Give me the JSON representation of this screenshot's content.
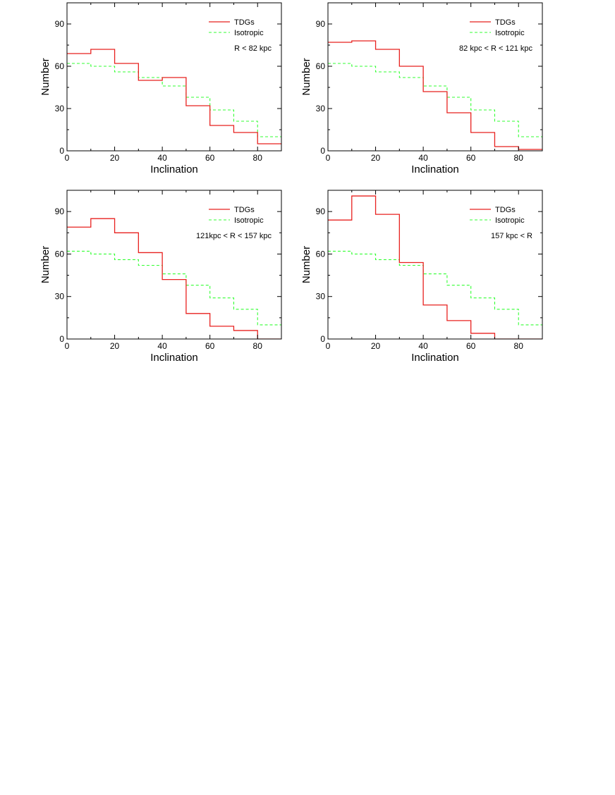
{
  "colors": {
    "tdg": "#e8211f",
    "isotropic": "#33ff33",
    "axis": "#000000"
  },
  "chart_data": [
    {
      "type": "histogram",
      "x": [
        0,
        10,
        20,
        30,
        40,
        50,
        60,
        70,
        80
      ],
      "bin_width": 10,
      "series": [
        {
          "name": "TDGs",
          "values": [
            69,
            72,
            62,
            50,
            52,
            32,
            18,
            13,
            5
          ]
        },
        {
          "name": "Isotropic",
          "values": [
            62,
            60,
            56,
            52,
            46,
            38,
            29,
            21,
            10
          ]
        }
      ],
      "xlabel": "Inclination",
      "ylabel": "Number",
      "annotation": "R < 82 kpc",
      "xlim": [
        0,
        90
      ],
      "ylim": [
        0,
        105
      ],
      "xticks": [
        0,
        20,
        40,
        60,
        80
      ],
      "yticks": [
        0,
        30,
        60,
        90
      ],
      "legend": "top-right"
    },
    {
      "type": "histogram",
      "x": [
        0,
        10,
        20,
        30,
        40,
        50,
        60,
        70,
        80
      ],
      "bin_width": 10,
      "series": [
        {
          "name": "TDGs",
          "values": [
            77,
            78,
            72,
            60,
            42,
            27,
            13,
            3,
            1
          ]
        },
        {
          "name": "Isotropic",
          "values": [
            62,
            60,
            56,
            52,
            46,
            38,
            29,
            21,
            10
          ]
        }
      ],
      "xlabel": "Inclination",
      "ylabel": "Number",
      "annotation": "82 kpc < R < 121 kpc",
      "xlim": [
        0,
        90
      ],
      "ylim": [
        0,
        105
      ],
      "xticks": [
        0,
        20,
        40,
        60,
        80
      ],
      "yticks": [
        0,
        30,
        60,
        90
      ],
      "legend": "top-right"
    },
    {
      "type": "histogram",
      "x": [
        0,
        10,
        20,
        30,
        40,
        50,
        60,
        70,
        80
      ],
      "bin_width": 10,
      "series": [
        {
          "name": "TDGs",
          "values": [
            79,
            85,
            75,
            61,
            42,
            18,
            9,
            6,
            0
          ]
        },
        {
          "name": "Isotropic",
          "values": [
            62,
            60,
            56,
            52,
            46,
            38,
            29,
            21,
            10
          ]
        }
      ],
      "xlabel": "Inclination",
      "ylabel": "Number",
      "annotation": "121kpc < R < 157 kpc",
      "xlim": [
        0,
        90
      ],
      "ylim": [
        0,
        105
      ],
      "xticks": [
        0,
        20,
        40,
        60,
        80
      ],
      "yticks": [
        0,
        30,
        60,
        90
      ],
      "legend": "top-right"
    },
    {
      "type": "histogram",
      "x": [
        0,
        10,
        20,
        30,
        40,
        50,
        60,
        70,
        80
      ],
      "bin_width": 10,
      "series": [
        {
          "name": "TDGs",
          "values": [
            84,
            101,
            88,
            54,
            24,
            13,
            4,
            0,
            0
          ]
        },
        {
          "name": "Isotropic",
          "values": [
            62,
            60,
            56,
            52,
            46,
            38,
            29,
            21,
            10
          ]
        }
      ],
      "xlabel": "Inclination",
      "ylabel": "Number",
      "annotation": "157 kpc < R",
      "xlim": [
        0,
        90
      ],
      "ylim": [
        0,
        105
      ],
      "xticks": [
        0,
        20,
        40,
        60,
        80
      ],
      "yticks": [
        0,
        30,
        60,
        90
      ],
      "legend": "top-right"
    }
  ]
}
